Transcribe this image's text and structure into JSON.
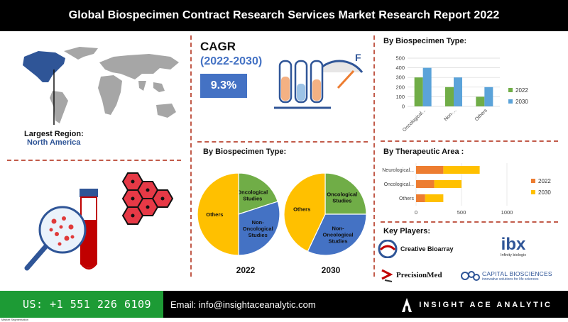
{
  "header": {
    "title": "Global Biospecimen Contract Research Services Market Research Report 2022"
  },
  "region": {
    "label": "Largest Region:",
    "value": "North America"
  },
  "cagr": {
    "title": "CAGR",
    "period": "(2022-2030)",
    "value": "9.3%"
  },
  "colors": {
    "primary": "#4472c4",
    "accent": "#ed7d31",
    "gold": "#ffc000",
    "green": "#70ad47",
    "teal": "#5ba3d9",
    "footer_green": "#1d9b35",
    "separator": "#c25b4a"
  },
  "bar_section": {
    "title": "By Biospecimen Type:"
  },
  "pie_section": {
    "title": "By Biospecimen Type:",
    "year_2022": "2022",
    "year_2030": "2030"
  },
  "therapeutic_section": {
    "title": "By Therapeutic Area :"
  },
  "key_players": {
    "title": "Key Players:",
    "players": [
      {
        "name": "Creative Bioarray"
      },
      {
        "name": "ibx",
        "sub": "Infinity biologix"
      },
      {
        "name": "PrecisionMed"
      },
      {
        "name": "CAPITAL BIOSCIENCES",
        "sub": "innovative solutions for life sciences"
      }
    ]
  },
  "footer": {
    "phone": "US: +1 551 226 6109",
    "email": "Email: info@insightaceanalytic.com",
    "brand": "INSIGHT ACE ANALYTIC",
    "tiny": "Market Segmentation"
  },
  "chart_data": [
    {
      "type": "bar",
      "title": "By Biospecimen Type:",
      "categories": [
        "Oncological...",
        "Non-...",
        "Others"
      ],
      "series": [
        {
          "name": "2022",
          "values": [
            300,
            200,
            100
          ]
        },
        {
          "name": "2030",
          "values": [
            400,
            300,
            200
          ]
        }
      ],
      "ylim": [
        0,
        500
      ],
      "yticks": [
        0,
        100,
        200,
        300,
        400,
        500
      ],
      "legend": "right"
    },
    {
      "type": "pie",
      "title": "2022",
      "slices": [
        {
          "label": "Oncological Studies",
          "value": 20
        },
        {
          "label": "Non-Oncological Studies",
          "value": 30
        },
        {
          "label": "Others",
          "value": 50
        }
      ]
    },
    {
      "type": "pie",
      "title": "2030",
      "slices": [
        {
          "label": "Oncological Studies",
          "value": 25
        },
        {
          "label": "Non-Oncological Studies",
          "value": 32
        },
        {
          "label": "Others",
          "value": 43
        }
      ]
    },
    {
      "type": "bar",
      "orientation": "horizontal",
      "stacked": true,
      "title": "By Therapeutic Area :",
      "categories": [
        "Neurological...",
        "Oncological...",
        "Others"
      ],
      "series": [
        {
          "name": "2022",
          "values": [
            300,
            200,
            100
          ]
        },
        {
          "name": "2030",
          "values": [
            400,
            300,
            200
          ]
        }
      ],
      "xlim": [
        0,
        1000
      ],
      "xticks": [
        0,
        500,
        1000
      ],
      "legend": "right"
    }
  ]
}
